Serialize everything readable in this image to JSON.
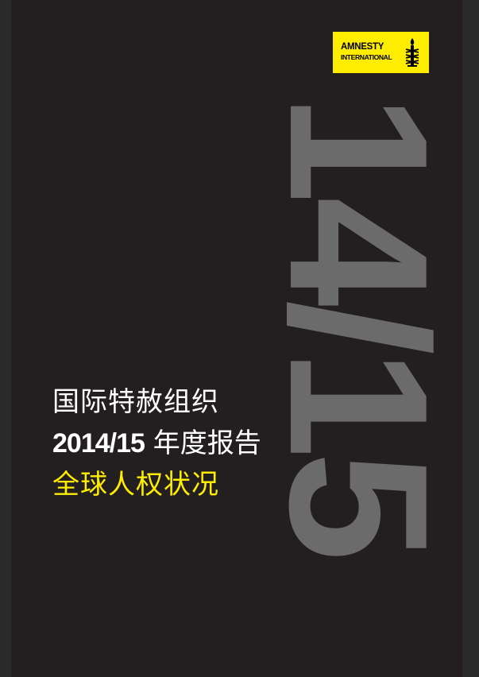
{
  "cover": {
    "big_year": "14/15",
    "logo": {
      "line1": "AMNESTY",
      "line2": "INTERNATIONAL",
      "icon": "candle-barbed-wire-icon"
    },
    "title_line1": "国际特赦组织",
    "title_line2_number": "2014/15",
    "title_line2_text": "年度报告",
    "title_line3": "全球人权状况"
  },
  "colors": {
    "background": "#231f20",
    "brand_yellow": "#ffed00",
    "big_year_gray": "#6b6b6c",
    "title_white": "#ffffff"
  }
}
